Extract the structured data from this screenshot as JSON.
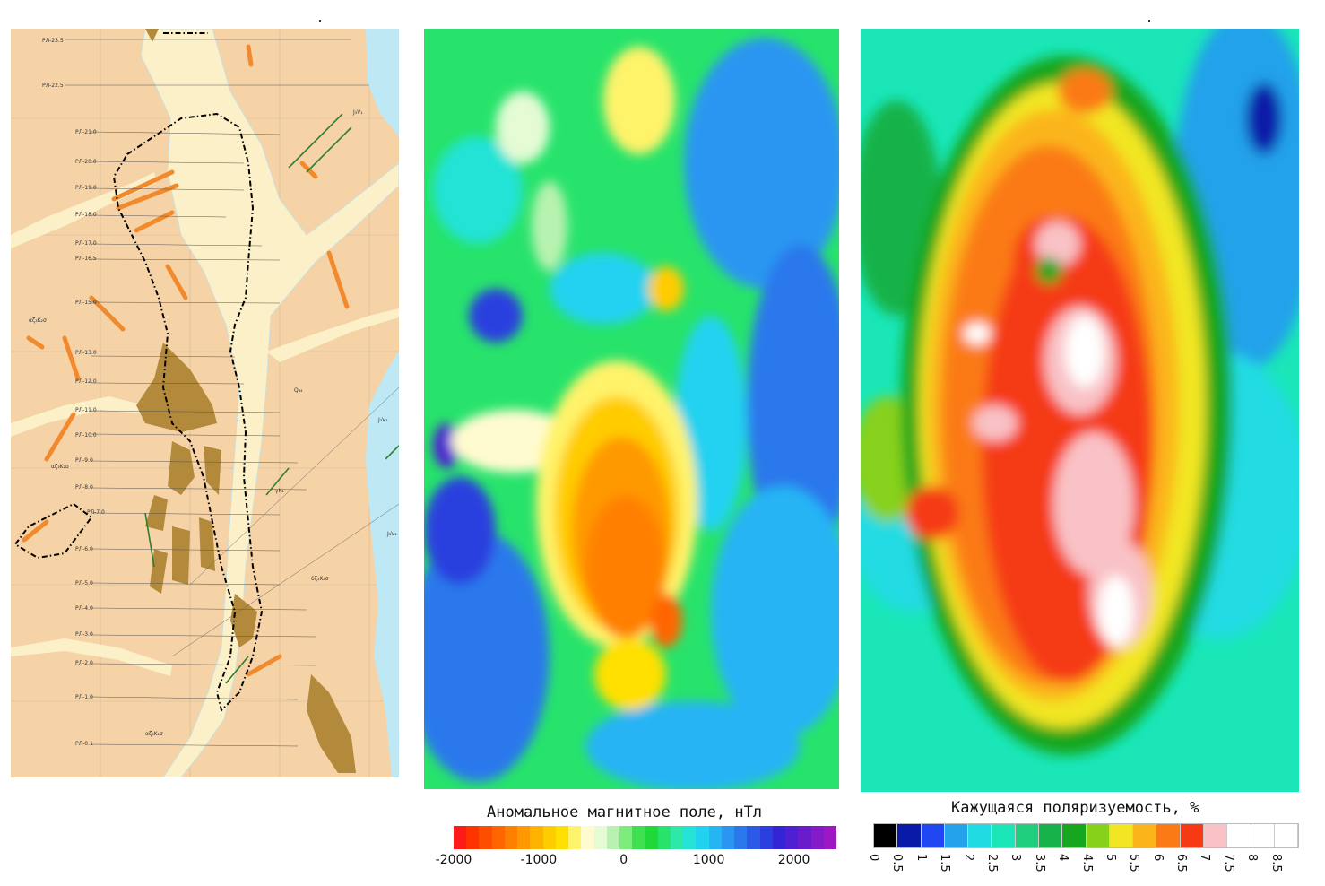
{
  "geology_map": {
    "profile_labels": [
      "PЛ-23.5",
      "PЛ-22.5",
      "PЛ-21.0",
      "PЛ-20.0",
      "PЛ-19.0",
      "PЛ-18.0",
      "PЛ-17.0",
      "PЛ-16.5",
      "PЛ-15.0",
      "PЛ-13.0",
      "PЛ-12.0",
      "PЛ-11.0",
      "PЛ-10.0",
      "PЛ-9.0",
      "PЛ-8.0",
      "PЛ-7.0",
      "PЛ-6.0",
      "PЛ-5.0",
      "PЛ-4.0",
      "PЛ-3.0",
      "PЛ-2.0",
      "PЛ-1.0",
      "PЛ-0.1"
    ],
    "symbol_labels": [
      "αζ₃K₂σ",
      "αζ₃K₂σ",
      "αζ₃K₂σ",
      "δζ₃K₂σ",
      "Q₃₄",
      "J₃V₁",
      "J₃V₁",
      "J₃V₁",
      "γK₁"
    ],
    "colors": {
      "background": "#f6d3a7",
      "river": "#bfe8f5",
      "alluvium": "#fbf0c8",
      "intrusive": "#b38a3c",
      "dykes": "#f08a2c",
      "faults": "#2f7d2f",
      "contour": "#000000"
    }
  },
  "magnetic_map": {
    "legend": {
      "title": "Аномальное магнитное поле, нТл",
      "ticks": [
        "-2000",
        "-1000",
        "0",
        "1000",
        "2000"
      ],
      "colors": [
        "#ff1a1a",
        "#ff3300",
        "#ff4d00",
        "#ff6600",
        "#ff8000",
        "#ff9900",
        "#ffb300",
        "#ffcc00",
        "#ffe000",
        "#fff36b",
        "#fffbd0",
        "#e4fbd4",
        "#b8f2b0",
        "#7cec7c",
        "#3fe04f",
        "#20d838",
        "#27e36b",
        "#2ee8a6",
        "#22e3d6",
        "#20d2f0",
        "#26b4f5",
        "#2a96f2",
        "#2a78ec",
        "#2a5ae6",
        "#2a3fde",
        "#3325d6",
        "#4d20d2",
        "#6a1ccd",
        "#851ac8",
        "#9d18c2"
      ],
      "range": [
        -2000,
        2500
      ]
    }
  },
  "polarizability_map": {
    "legend": {
      "title": "Кажущаяся поляризуемость, %",
      "ticks": [
        "0",
        "0.5",
        "1",
        "1.5",
        "2",
        "2.5",
        "3",
        "3.5",
        "4",
        "4.5",
        "5",
        "5.5",
        "6",
        "6.5",
        "7",
        "7.5",
        "8",
        "8.5"
      ],
      "colors": [
        "#000000",
        "#0a1aa8",
        "#1f46f0",
        "#24a2ea",
        "#21dbe3",
        "#1ae6b8",
        "#20cf7e",
        "#17b24a",
        "#17a61f",
        "#88d11a",
        "#f2e624",
        "#fbb51a",
        "#fb7a16",
        "#f53a14",
        "#f9c2c6",
        "#ffffff",
        "#ffffff",
        "#ffffff"
      ]
    }
  }
}
